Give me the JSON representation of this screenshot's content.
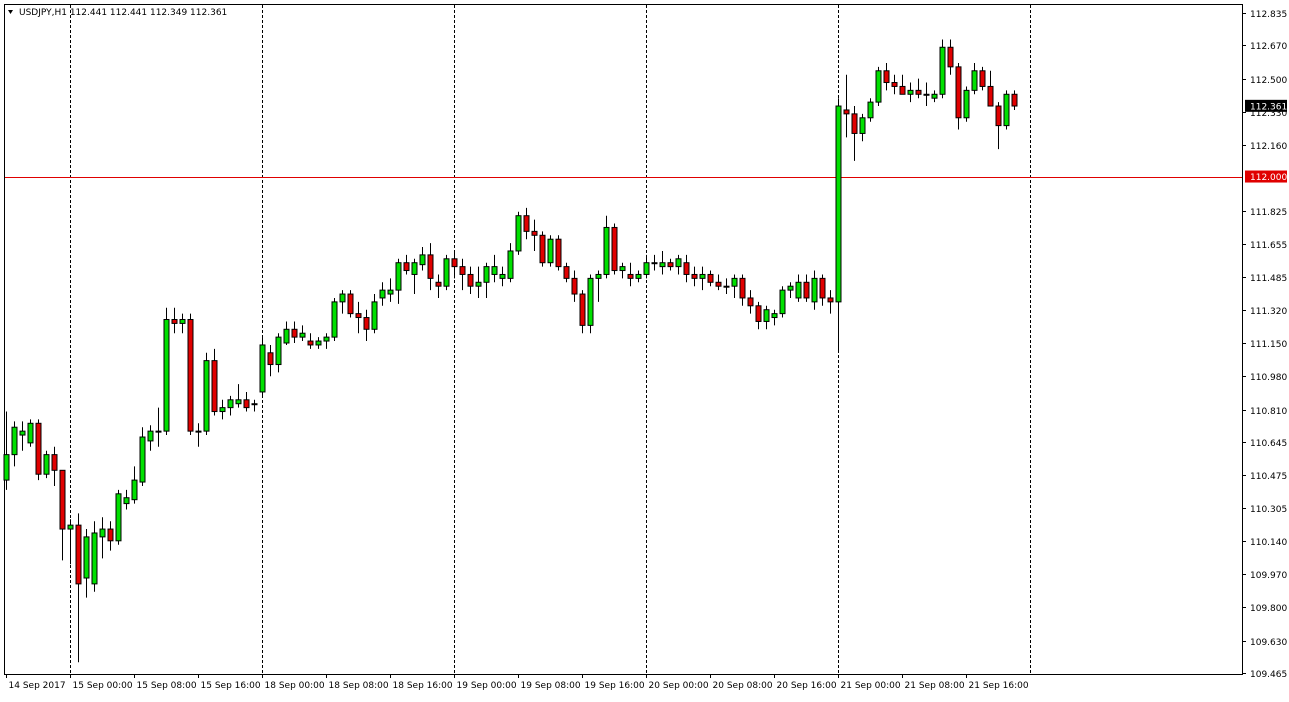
{
  "header": {
    "symbol_info": "USDJPY,H1  112.441 112.441 112.349 112.361"
  },
  "colors": {
    "background": "#ffffff",
    "bull": "#00e000",
    "bear": "#e00000",
    "outline": "#000000",
    "hline": "#e00000",
    "separator": "#000000"
  },
  "chart_data": {
    "type": "candlestick",
    "symbol": "USDJPY",
    "timeframe": "H1",
    "ylim": [
      109.465,
      112.835
    ],
    "yticks": [
      112.835,
      112.67,
      112.5,
      112.33,
      112.16,
      111.825,
      111.655,
      111.485,
      111.32,
      111.15,
      110.98,
      110.81,
      110.645,
      110.475,
      110.305,
      110.14,
      109.97,
      109.8,
      109.63,
      109.465
    ],
    "ytick_labels": [
      "112.835",
      "112.670",
      "112.500",
      "112.330",
      "112.160",
      "111.825",
      "111.655",
      "111.485",
      "111.320",
      "111.150",
      "110.980",
      "110.810",
      "110.645",
      "110.475",
      "110.305",
      "110.140",
      "109.970",
      "109.800",
      "109.630",
      "109.465"
    ],
    "xtick_labels": [
      "14 Sep 2017",
      "15 Sep 00:00",
      "15 Sep 08:00",
      "15 Sep 16:00",
      "18 Sep 00:00",
      "18 Sep 08:00",
      "18 Sep 16:00",
      "19 Sep 00:00",
      "19 Sep 08:00",
      "19 Sep 16:00",
      "20 Sep 00:00",
      "20 Sep 08:00",
      "20 Sep 16:00",
      "21 Sep 00:00",
      "21 Sep 08:00",
      "21 Sep 16:00"
    ],
    "xtick_index": [
      0,
      8,
      16,
      24,
      32,
      40,
      48,
      56,
      64,
      72,
      80,
      88,
      96,
      104,
      112,
      120
    ],
    "period_separators_index": [
      8,
      32,
      56,
      80,
      104,
      128
    ],
    "horizontal_line": {
      "value": 112.0,
      "label": "112.000"
    },
    "current_price": {
      "value": 112.361,
      "label": "112.361"
    },
    "candles": [
      {
        "o": 110.45,
        "h": 110.8,
        "l": 110.4,
        "c": 110.58
      },
      {
        "o": 110.58,
        "h": 110.75,
        "l": 110.52,
        "c": 110.72
      },
      {
        "o": 110.68,
        "h": 110.75,
        "l": 110.6,
        "c": 110.7
      },
      {
        "o": 110.64,
        "h": 110.76,
        "l": 110.62,
        "c": 110.74
      },
      {
        "o": 110.74,
        "h": 110.76,
        "l": 110.45,
        "c": 110.48
      },
      {
        "o": 110.48,
        "h": 110.6,
        "l": 110.46,
        "c": 110.58
      },
      {
        "o": 110.58,
        "h": 110.62,
        "l": 110.42,
        "c": 110.5
      },
      {
        "o": 110.5,
        "h": 110.5,
        "l": 110.04,
        "c": 110.2
      },
      {
        "o": 110.2,
        "h": 110.25,
        "l": 110.02,
        "c": 110.22
      },
      {
        "o": 110.22,
        "h": 110.28,
        "l": 109.52,
        "c": 109.92
      },
      {
        "o": 109.95,
        "h": 110.2,
        "l": 109.85,
        "c": 110.16
      },
      {
        "o": 109.92,
        "h": 110.24,
        "l": 109.88,
        "c": 110.18
      },
      {
        "o": 110.16,
        "h": 110.26,
        "l": 110.05,
        "c": 110.2
      },
      {
        "o": 110.2,
        "h": 110.24,
        "l": 110.09,
        "c": 110.14
      },
      {
        "o": 110.14,
        "h": 110.4,
        "l": 110.12,
        "c": 110.38
      },
      {
        "o": 110.33,
        "h": 110.4,
        "l": 110.3,
        "c": 110.36
      },
      {
        "o": 110.35,
        "h": 110.52,
        "l": 110.33,
        "c": 110.45
      },
      {
        "o": 110.44,
        "h": 110.72,
        "l": 110.42,
        "c": 110.67
      },
      {
        "o": 110.65,
        "h": 110.73,
        "l": 110.6,
        "c": 110.7
      },
      {
        "o": 110.7,
        "h": 110.82,
        "l": 110.62,
        "c": 110.7
      },
      {
        "o": 110.7,
        "h": 111.33,
        "l": 110.68,
        "c": 111.27
      },
      {
        "o": 111.27,
        "h": 111.33,
        "l": 111.2,
        "c": 111.25
      },
      {
        "o": 111.25,
        "h": 111.3,
        "l": 111.2,
        "c": 111.27
      },
      {
        "o": 111.27,
        "h": 111.3,
        "l": 110.68,
        "c": 110.7
      },
      {
        "o": 110.7,
        "h": 110.74,
        "l": 110.62,
        "c": 110.7
      },
      {
        "o": 110.7,
        "h": 111.1,
        "l": 110.68,
        "c": 111.06
      },
      {
        "o": 111.06,
        "h": 111.12,
        "l": 110.78,
        "c": 110.8
      },
      {
        "o": 110.8,
        "h": 110.86,
        "l": 110.76,
        "c": 110.82
      },
      {
        "o": 110.82,
        "h": 110.88,
        "l": 110.78,
        "c": 110.86
      },
      {
        "o": 110.84,
        "h": 110.94,
        "l": 110.82,
        "c": 110.86
      },
      {
        "o": 110.86,
        "h": 110.9,
        "l": 110.8,
        "c": 110.82
      },
      {
        "o": 110.84,
        "h": 110.86,
        "l": 110.8,
        "c": 110.84
      },
      {
        "o": 110.9,
        "h": 111.18,
        "l": 110.88,
        "c": 111.14
      },
      {
        "o": 111.1,
        "h": 111.14,
        "l": 110.98,
        "c": 111.04
      },
      {
        "o": 111.04,
        "h": 111.2,
        "l": 111.0,
        "c": 111.18
      },
      {
        "o": 111.15,
        "h": 111.26,
        "l": 111.14,
        "c": 111.22
      },
      {
        "o": 111.22,
        "h": 111.26,
        "l": 111.15,
        "c": 111.18
      },
      {
        "o": 111.18,
        "h": 111.24,
        "l": 111.16,
        "c": 111.2
      },
      {
        "o": 111.16,
        "h": 111.2,
        "l": 111.12,
        "c": 111.14
      },
      {
        "o": 111.14,
        "h": 111.18,
        "l": 111.12,
        "c": 111.16
      },
      {
        "o": 111.16,
        "h": 111.2,
        "l": 111.12,
        "c": 111.18
      },
      {
        "o": 111.18,
        "h": 111.38,
        "l": 111.16,
        "c": 111.36
      },
      {
        "o": 111.36,
        "h": 111.42,
        "l": 111.3,
        "c": 111.4
      },
      {
        "o": 111.4,
        "h": 111.42,
        "l": 111.28,
        "c": 111.3
      },
      {
        "o": 111.3,
        "h": 111.36,
        "l": 111.2,
        "c": 111.28
      },
      {
        "o": 111.28,
        "h": 111.32,
        "l": 111.16,
        "c": 111.22
      },
      {
        "o": 111.22,
        "h": 111.4,
        "l": 111.2,
        "c": 111.36
      },
      {
        "o": 111.38,
        "h": 111.46,
        "l": 111.34,
        "c": 111.42
      },
      {
        "o": 111.4,
        "h": 111.48,
        "l": 111.36,
        "c": 111.42
      },
      {
        "o": 111.42,
        "h": 111.58,
        "l": 111.35,
        "c": 111.56
      },
      {
        "o": 111.56,
        "h": 111.6,
        "l": 111.5,
        "c": 111.52
      },
      {
        "o": 111.5,
        "h": 111.58,
        "l": 111.4,
        "c": 111.56
      },
      {
        "o": 111.55,
        "h": 111.64,
        "l": 111.52,
        "c": 111.6
      },
      {
        "o": 111.6,
        "h": 111.66,
        "l": 111.42,
        "c": 111.48
      },
      {
        "o": 111.46,
        "h": 111.5,
        "l": 111.38,
        "c": 111.44
      },
      {
        "o": 111.44,
        "h": 111.6,
        "l": 111.42,
        "c": 111.58
      },
      {
        "o": 111.58,
        "h": 111.62,
        "l": 111.48,
        "c": 111.54
      },
      {
        "o": 111.54,
        "h": 111.58,
        "l": 111.42,
        "c": 111.5
      },
      {
        "o": 111.5,
        "h": 111.54,
        "l": 111.4,
        "c": 111.44
      },
      {
        "o": 111.44,
        "h": 111.54,
        "l": 111.38,
        "c": 111.46
      },
      {
        "o": 111.46,
        "h": 111.56,
        "l": 111.38,
        "c": 111.54
      },
      {
        "o": 111.5,
        "h": 111.6,
        "l": 111.46,
        "c": 111.54
      },
      {
        "o": 111.48,
        "h": 111.54,
        "l": 111.44,
        "c": 111.5
      },
      {
        "o": 111.48,
        "h": 111.66,
        "l": 111.46,
        "c": 111.62
      },
      {
        "o": 111.62,
        "h": 111.82,
        "l": 111.6,
        "c": 111.8
      },
      {
        "o": 111.8,
        "h": 111.84,
        "l": 111.68,
        "c": 111.72
      },
      {
        "o": 111.72,
        "h": 111.78,
        "l": 111.62,
        "c": 111.7
      },
      {
        "o": 111.7,
        "h": 111.72,
        "l": 111.54,
        "c": 111.56
      },
      {
        "o": 111.56,
        "h": 111.7,
        "l": 111.54,
        "c": 111.68
      },
      {
        "o": 111.68,
        "h": 111.7,
        "l": 111.52,
        "c": 111.54
      },
      {
        "o": 111.54,
        "h": 111.56,
        "l": 111.46,
        "c": 111.48
      },
      {
        "o": 111.48,
        "h": 111.52,
        "l": 111.36,
        "c": 111.4
      },
      {
        "o": 111.4,
        "h": 111.42,
        "l": 111.2,
        "c": 111.24
      },
      {
        "o": 111.24,
        "h": 111.5,
        "l": 111.2,
        "c": 111.48
      },
      {
        "o": 111.48,
        "h": 111.52,
        "l": 111.36,
        "c": 111.5
      },
      {
        "o": 111.5,
        "h": 111.8,
        "l": 111.48,
        "c": 111.74
      },
      {
        "o": 111.74,
        "h": 111.76,
        "l": 111.5,
        "c": 111.52
      },
      {
        "o": 111.52,
        "h": 111.56,
        "l": 111.48,
        "c": 111.54
      },
      {
        "o": 111.5,
        "h": 111.56,
        "l": 111.44,
        "c": 111.48
      },
      {
        "o": 111.48,
        "h": 111.52,
        "l": 111.46,
        "c": 111.5
      },
      {
        "o": 111.5,
        "h": 111.6,
        "l": 111.48,
        "c": 111.56
      },
      {
        "o": 111.56,
        "h": 111.6,
        "l": 111.52,
        "c": 111.56
      },
      {
        "o": 111.54,
        "h": 111.62,
        "l": 111.5,
        "c": 111.56
      },
      {
        "o": 111.56,
        "h": 111.58,
        "l": 111.52,
        "c": 111.54
      },
      {
        "o": 111.54,
        "h": 111.6,
        "l": 111.5,
        "c": 111.58
      },
      {
        "o": 111.56,
        "h": 111.6,
        "l": 111.46,
        "c": 111.5
      },
      {
        "o": 111.5,
        "h": 111.54,
        "l": 111.44,
        "c": 111.48
      },
      {
        "o": 111.48,
        "h": 111.54,
        "l": 111.42,
        "c": 111.5
      },
      {
        "o": 111.5,
        "h": 111.52,
        "l": 111.44,
        "c": 111.46
      },
      {
        "o": 111.46,
        "h": 111.5,
        "l": 111.42,
        "c": 111.44
      },
      {
        "o": 111.44,
        "h": 111.48,
        "l": 111.4,
        "c": 111.44
      },
      {
        "o": 111.44,
        "h": 111.5,
        "l": 111.38,
        "c": 111.48
      },
      {
        "o": 111.48,
        "h": 111.5,
        "l": 111.34,
        "c": 111.38
      },
      {
        "o": 111.38,
        "h": 111.42,
        "l": 111.3,
        "c": 111.34
      },
      {
        "o": 111.34,
        "h": 111.36,
        "l": 111.22,
        "c": 111.26
      },
      {
        "o": 111.26,
        "h": 111.34,
        "l": 111.22,
        "c": 111.32
      },
      {
        "o": 111.28,
        "h": 111.32,
        "l": 111.24,
        "c": 111.3
      },
      {
        "o": 111.3,
        "h": 111.44,
        "l": 111.28,
        "c": 111.42
      },
      {
        "o": 111.42,
        "h": 111.46,
        "l": 111.38,
        "c": 111.44
      },
      {
        "o": 111.38,
        "h": 111.5,
        "l": 111.36,
        "c": 111.46
      },
      {
        "o": 111.46,
        "h": 111.5,
        "l": 111.36,
        "c": 111.38
      },
      {
        "o": 111.36,
        "h": 111.52,
        "l": 111.32,
        "c": 111.48
      },
      {
        "o": 111.48,
        "h": 111.5,
        "l": 111.34,
        "c": 111.38
      },
      {
        "o": 111.38,
        "h": 111.42,
        "l": 111.3,
        "c": 111.36
      },
      {
        "o": 111.36,
        "h": 112.4,
        "l": 111.1,
        "c": 112.36
      },
      {
        "o": 112.34,
        "h": 112.52,
        "l": 112.2,
        "c": 112.32
      },
      {
        "o": 112.32,
        "h": 112.36,
        "l": 112.08,
        "c": 112.22
      },
      {
        "o": 112.22,
        "h": 112.32,
        "l": 112.18,
        "c": 112.3
      },
      {
        "o": 112.3,
        "h": 112.4,
        "l": 112.28,
        "c": 112.38
      },
      {
        "o": 112.38,
        "h": 112.56,
        "l": 112.36,
        "c": 112.54
      },
      {
        "o": 112.54,
        "h": 112.58,
        "l": 112.44,
        "c": 112.48
      },
      {
        "o": 112.48,
        "h": 112.52,
        "l": 112.42,
        "c": 112.46
      },
      {
        "o": 112.46,
        "h": 112.52,
        "l": 112.42,
        "c": 112.42
      },
      {
        "o": 112.42,
        "h": 112.48,
        "l": 112.38,
        "c": 112.44
      },
      {
        "o": 112.44,
        "h": 112.5,
        "l": 112.4,
        "c": 112.42
      },
      {
        "o": 112.42,
        "h": 112.48,
        "l": 112.36,
        "c": 112.42
      },
      {
        "o": 112.4,
        "h": 112.44,
        "l": 112.38,
        "c": 112.42
      },
      {
        "o": 112.42,
        "h": 112.7,
        "l": 112.4,
        "c": 112.66
      },
      {
        "o": 112.66,
        "h": 112.7,
        "l": 112.52,
        "c": 112.56
      },
      {
        "o": 112.56,
        "h": 112.58,
        "l": 112.24,
        "c": 112.3
      },
      {
        "o": 112.3,
        "h": 112.46,
        "l": 112.28,
        "c": 112.44
      },
      {
        "o": 112.44,
        "h": 112.58,
        "l": 112.42,
        "c": 112.54
      },
      {
        "o": 112.54,
        "h": 112.56,
        "l": 112.44,
        "c": 112.46
      },
      {
        "o": 112.46,
        "h": 112.54,
        "l": 112.38,
        "c": 112.36
      },
      {
        "o": 112.36,
        "h": 112.38,
        "l": 112.14,
        "c": 112.26
      },
      {
        "o": 112.26,
        "h": 112.44,
        "l": 112.24,
        "c": 112.42
      },
      {
        "o": 112.42,
        "h": 112.44,
        "l": 112.34,
        "c": 112.36
      }
    ]
  }
}
